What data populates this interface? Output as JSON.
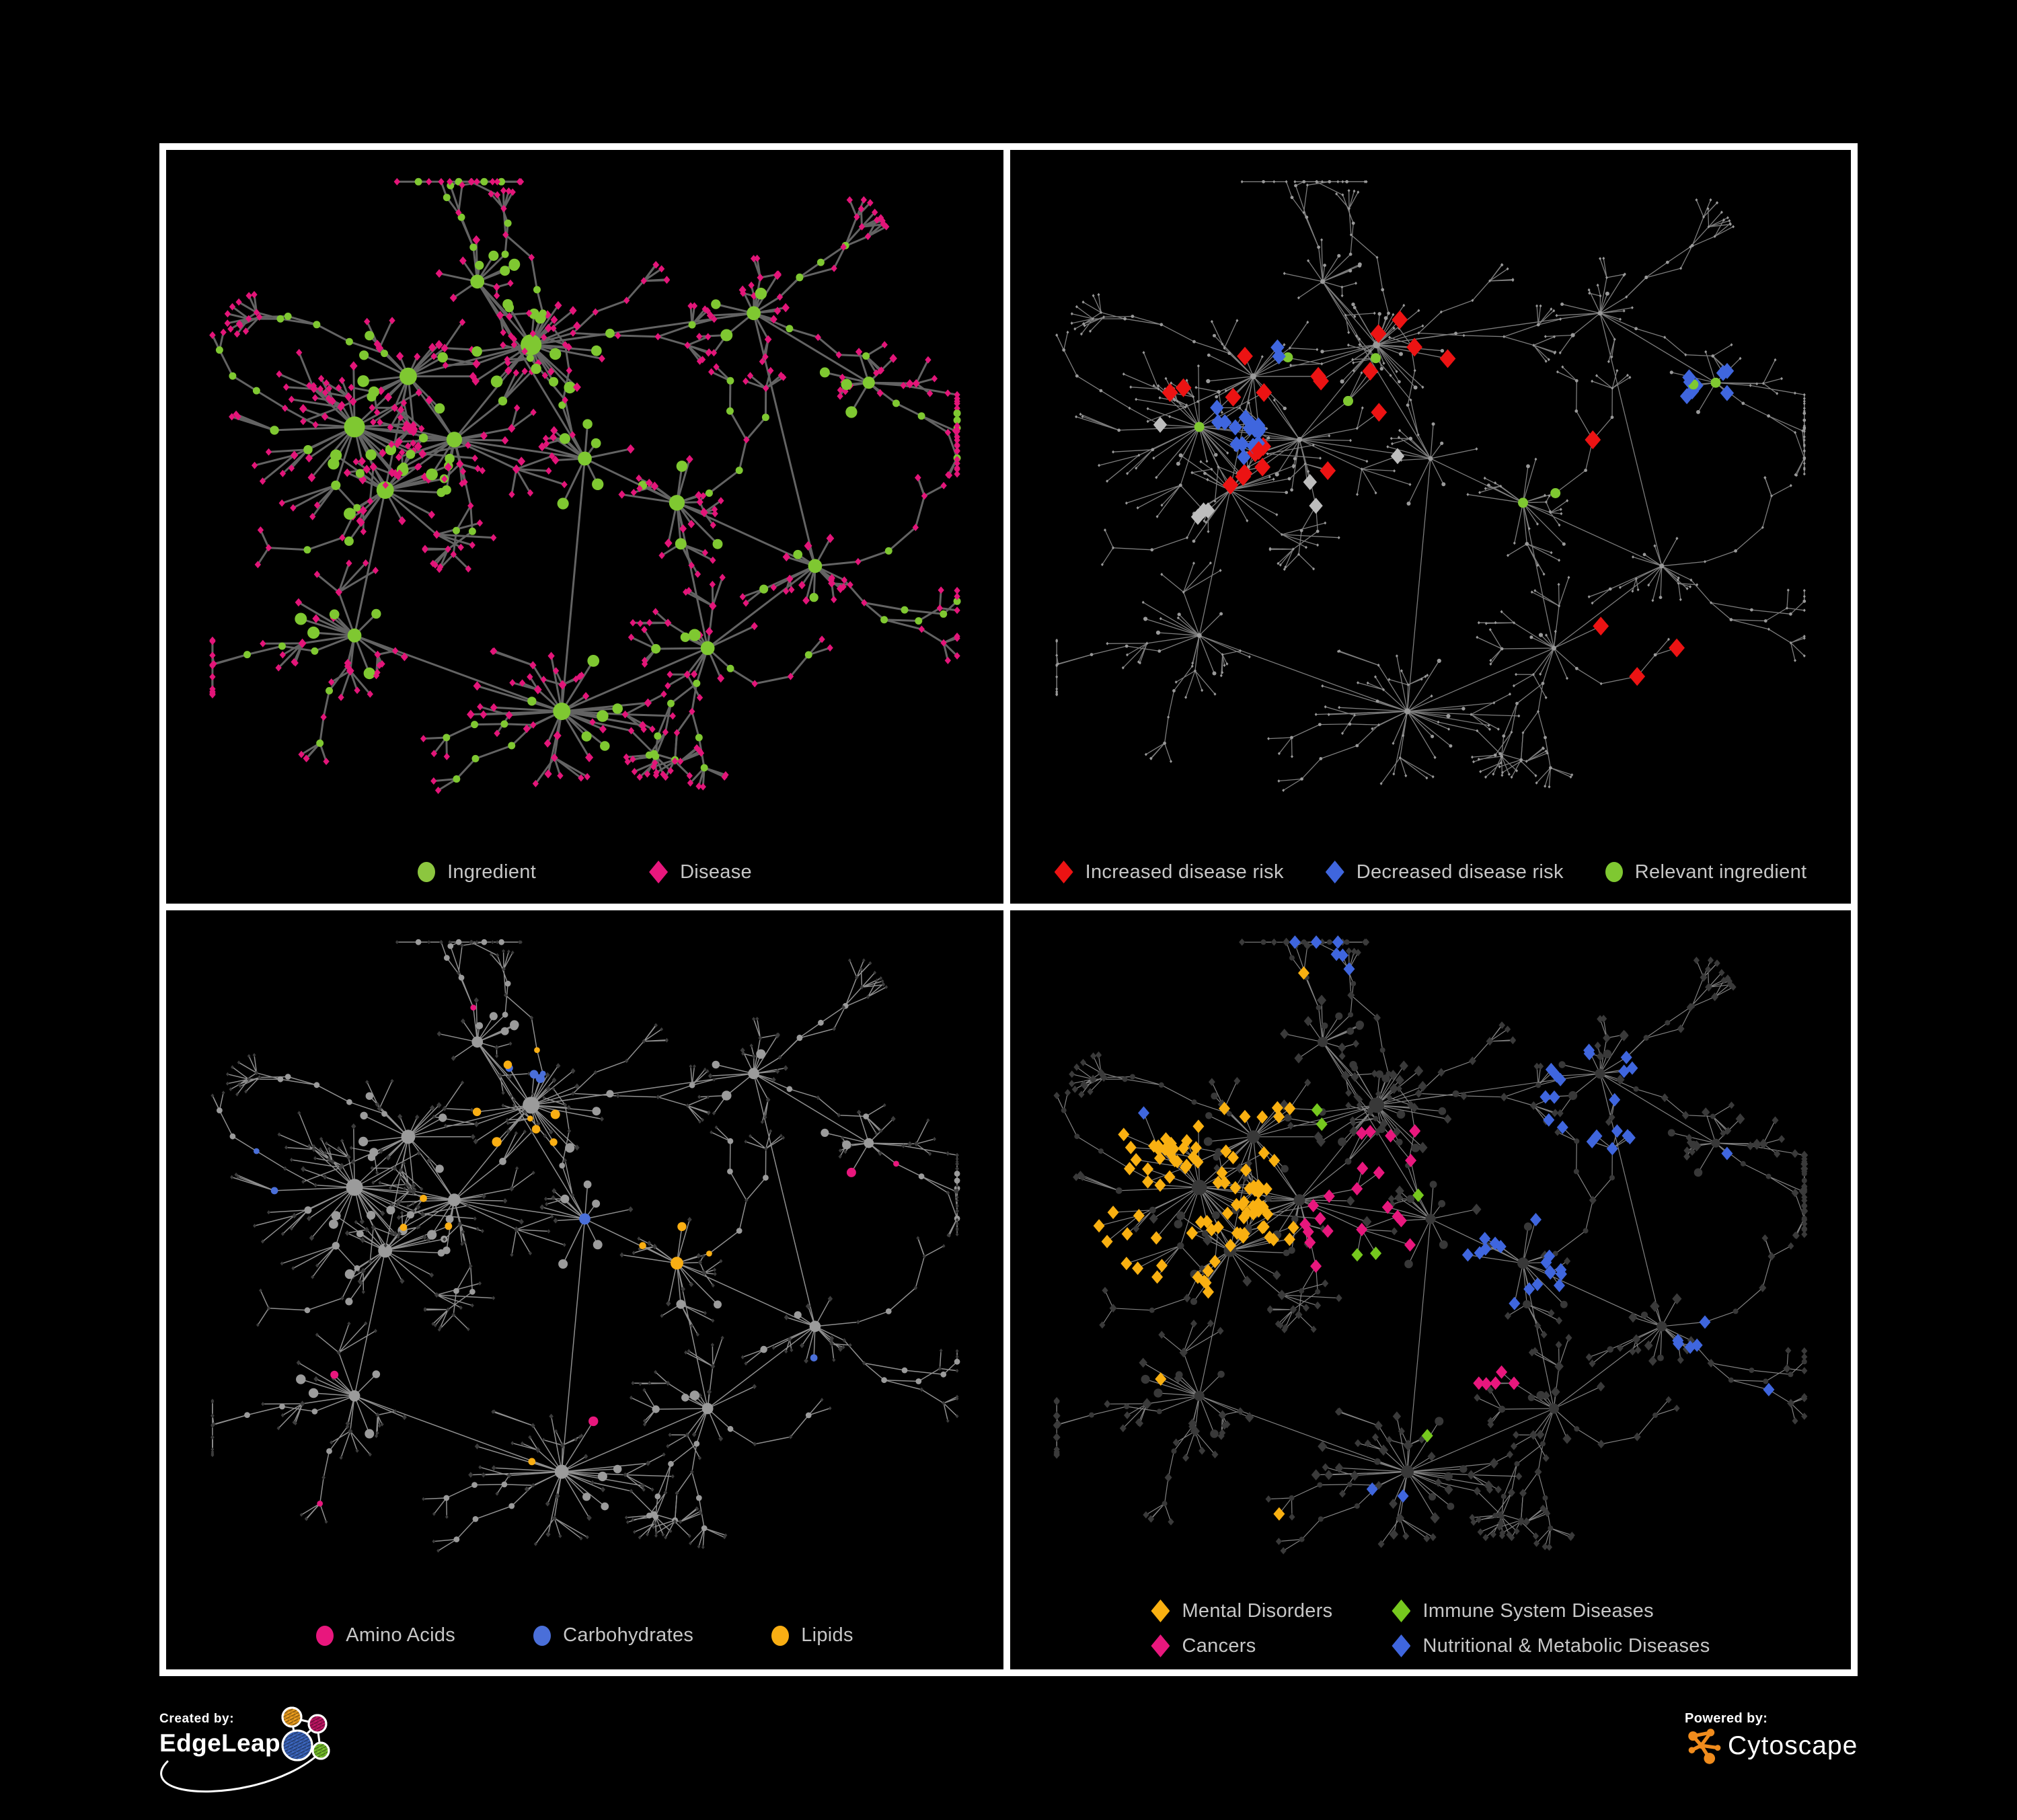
{
  "figure": {
    "background": "#000000",
    "panel_border": "#FFFFFF",
    "legend_text_color": "#C7C7C7"
  },
  "credits": {
    "created_by_label": "Created by:",
    "edgeleap_name": "EdgeLeap",
    "powered_by_label": "Powered by:",
    "cytoscape_name": "Cytoscape",
    "edgeleap_glyph_colors": {
      "blue": "#3C67C0",
      "orange": "#F0A01E",
      "magenta": "#C21565",
      "green": "#77C22B"
    },
    "cytoscape_icon_color": "#F08C1D"
  },
  "panels": [
    {
      "id": "ingredient-disease",
      "legend": {
        "layout": "row",
        "items": [
          {
            "label": "Ingredient",
            "shape": "circle",
            "color": "#8CC63F"
          },
          {
            "label": "Disease",
            "shape": "diamond",
            "color": "#E8177D"
          }
        ]
      },
      "scheme": {
        "mode": "category",
        "edge": "#6C6C6C",
        "edgeWidth": 3.0,
        "circleColor": "#7FC831",
        "diamondColor": "#E31579",
        "sizeMul": 1.3,
        "minSize": 5.5
      }
    },
    {
      "id": "disease-risk",
      "legend": {
        "layout": "row",
        "items": [
          {
            "label": "Increased disease risk",
            "shape": "diamond",
            "color": "#EC1313"
          },
          {
            "label": "Decreased disease risk",
            "shape": "diamond",
            "color": "#3F66DE"
          },
          {
            "label": "Relevant ingredient",
            "shape": "circle",
            "color": "#7FC831"
          }
        ]
      },
      "scheme": {
        "mode": "highlight",
        "edge": "#878787",
        "edgeWidth": 1.3,
        "baseColor": "#9A9A9A",
        "baseMul": 0.45,
        "rules": [
          {
            "shape": "diamond",
            "color": "#EC1313",
            "size": 14,
            "zones": [
              [
                0.3,
                0.38,
                0.15,
                0.18
              ],
              [
                0.45,
                0.28,
                0.08,
                0.22
              ],
              [
                0.76,
                0.73,
                0.07,
                0.5
              ],
              [
                0.66,
                0.42,
                0.06,
                0.25
              ],
              [
                0.52,
                0.55,
                0.05,
                0.22
              ]
            ]
          },
          {
            "shape": "diamond",
            "color": "#3F66DE",
            "size": 12,
            "zones": [
              [
                0.235,
                0.41,
                0.05,
                0.6
              ],
              [
                0.87,
                0.33,
                0.045,
                0.85
              ],
              [
                0.29,
                0.29,
                0.03,
                0.35
              ]
            ]
          },
          {
            "shape": "diamond",
            "color": "#BDBDBD",
            "size": 12,
            "zones": [
              [
                0.21,
                0.53,
                0.04,
                0.5
              ],
              [
                0.38,
                0.52,
                0.05,
                0.3
              ],
              [
                0.46,
                0.45,
                0.04,
                0.3
              ],
              [
                0.13,
                0.4,
                0.035,
                0.45
              ]
            ]
          },
          {
            "shape": "circle",
            "color": "#7FC831",
            "size": 7.5,
            "zones": [
              [
                0.3,
                0.38,
                0.15,
                0.13
              ],
              [
                0.62,
                0.52,
                0.06,
                0.6
              ],
              [
                0.44,
                0.27,
                0.07,
                0.25
              ],
              [
                0.12,
                0.42,
                0.05,
                0.35
              ],
              [
                0.87,
                0.33,
                0.035,
                0.9
              ],
              [
                0.25,
                0.17,
                0.05,
                0.3
              ]
            ]
          }
        ]
      }
    },
    {
      "id": "ingredient-classes",
      "legend": {
        "layout": "row",
        "items": [
          {
            "label": "Amino Acids",
            "shape": "circle",
            "color": "#E8177D"
          },
          {
            "label": "Carbohydrates",
            "shape": "circle",
            "color": "#4A6FD9"
          },
          {
            "label": "Lipids",
            "shape": "circle",
            "color": "#F9AE13"
          }
        ]
      },
      "scheme": {
        "mode": "classes",
        "edge": "#9C9C9C",
        "edgeWidth": 1.5,
        "circleColor": "#9B9B9B",
        "circleMul": 1.05,
        "diamondColor": "#3C3C3C",
        "diamondMul": 0.82,
        "rules": [
          {
            "shape": "circle",
            "color": "#F9AE13",
            "size": 0,
            "zones": [
              [
                0.43,
                0.26,
                0.1,
                0.8
              ],
              [
                0.36,
                0.42,
                0.08,
                0.4
              ],
              [
                0.62,
                0.52,
                0.07,
                0.6
              ],
              [
                0.3,
                0.33,
                0.07,
                0.3
              ],
              [
                0.72,
                0.6,
                0.08,
                0.2
              ],
              [
                0.47,
                0.84,
                0.05,
                0.35
              ],
              [
                0.25,
                0.52,
                0.06,
                0.2
              ]
            ]
          },
          {
            "shape": "circle",
            "color": "#4A6FD9",
            "size": 0,
            "zones": [
              [
                0.43,
                0.22,
                0.06,
                0.35
              ],
              [
                0.06,
                0.38,
                0.045,
                0.6
              ],
              [
                0.8,
                0.64,
                0.05,
                0.4
              ],
              [
                0.48,
                0.47,
                0.035,
                0.3
              ]
            ]
          },
          {
            "shape": "circle",
            "color": "#E8177D",
            "size": 0,
            "zones": [
              [
                0.06,
                0.52,
                0.05,
                0.6
              ],
              [
                0.14,
                0.67,
                0.05,
                0.5
              ],
              [
                0.33,
                0.09,
                0.05,
                0.45
              ],
              [
                0.55,
                0.76,
                0.06,
                0.4
              ],
              [
                0.66,
                0.66,
                0.05,
                0.5
              ],
              [
                0.68,
                0.33,
                0.05,
                0.35
              ],
              [
                0.88,
                0.4,
                0.05,
                0.5
              ],
              [
                0.42,
                0.62,
                0.04,
                0.3
              ],
              [
                0.12,
                0.86,
                0.06,
                0.35
              ],
              [
                0.58,
                0.1,
                0.05,
                0.3
              ]
            ]
          }
        ]
      }
    },
    {
      "id": "disease-classes",
      "legend": {
        "layout": "grid",
        "items": [
          {
            "label": "Mental Disorders",
            "shape": "diamond",
            "color": "#F9B011"
          },
          {
            "label": "Immune System Diseases",
            "shape": "diamond",
            "color": "#76C81E"
          },
          {
            "label": "Cancers",
            "shape": "diamond",
            "color": "#E8177D"
          },
          {
            "label": "Nutritional & Metabolic Diseases",
            "shape": "diamond",
            "color": "#3F66DE"
          }
        ]
      },
      "scheme": {
        "mode": "classes",
        "edge": "#8E8E8E",
        "edgeWidth": 1.2,
        "circleColor": "#383838",
        "circleMul": 0.95,
        "diamondColor": "#3A3A3A",
        "diamondMul": 1.55,
        "rules": [
          {
            "shape": "diamond",
            "color": "#F9B011",
            "size": 10,
            "zones": [
              [
                0.2,
                0.42,
                0.15,
                0.85
              ],
              [
                0.28,
                0.33,
                0.07,
                0.45
              ],
              [
                0.35,
                0.07,
                0.05,
                0.5
              ],
              [
                0.1,
                0.68,
                0.06,
                0.3
              ],
              [
                0.3,
                0.88,
                0.05,
                0.3
              ]
            ]
          },
          {
            "shape": "diamond",
            "color": "#E8177D",
            "size": 10,
            "zones": [
              [
                0.42,
                0.45,
                0.11,
                0.55
              ],
              [
                0.47,
                0.32,
                0.07,
                0.35
              ],
              [
                0.9,
                0.2,
                0.06,
                0.6
              ],
              [
                0.35,
                0.75,
                0.05,
                0.3
              ],
              [
                0.6,
                0.7,
                0.05,
                0.25
              ],
              [
                0.25,
                0.06,
                0.04,
                0.35
              ]
            ]
          },
          {
            "shape": "diamond",
            "color": "#3F66DE",
            "size": 10,
            "zones": [
              [
                0.62,
                0.5,
                0.09,
                0.7
              ],
              [
                0.73,
                0.25,
                0.09,
                0.6
              ],
              [
                0.82,
                0.58,
                0.08,
                0.55
              ],
              [
                0.87,
                0.4,
                0.06,
                0.6
              ],
              [
                0.55,
                0.05,
                0.06,
                0.5
              ],
              [
                0.3,
                0.72,
                0.05,
                0.3
              ],
              [
                0.47,
                0.88,
                0.06,
                0.35
              ],
              [
                0.12,
                0.28,
                0.05,
                0.3
              ],
              [
                0.9,
                0.7,
                0.05,
                0.5
              ],
              [
                0.35,
                0.05,
                0.05,
                0.4
              ]
            ]
          },
          {
            "shape": "diamond",
            "color": "#76C81E",
            "size": 10,
            "zones": [
              [
                0.5,
                0.38,
                0.04,
                0.5
              ],
              [
                0.42,
                0.5,
                0.03,
                0.5
              ],
              [
                0.58,
                0.58,
                0.03,
                0.5
              ],
              [
                0.36,
                0.3,
                0.025,
                0.5
              ],
              [
                0.52,
                0.78,
                0.03,
                0.4
              ]
            ]
          }
        ]
      }
    }
  ],
  "network": {
    "seed": 1337,
    "diamondProb": 0.62,
    "step": 0.05,
    "hubs": [
      [
        0.2,
        0.4,
        26,
        0.085,
        12
      ],
      [
        0.27,
        0.32,
        22,
        0.075,
        10
      ],
      [
        0.24,
        0.5,
        20,
        0.075,
        10
      ],
      [
        0.33,
        0.42,
        18,
        0.07,
        9
      ],
      [
        0.43,
        0.27,
        26,
        0.075,
        12
      ],
      [
        0.36,
        0.17,
        12,
        0.055,
        8
      ],
      [
        0.5,
        0.45,
        10,
        0.065,
        8
      ],
      [
        0.62,
        0.52,
        14,
        0.065,
        9
      ],
      [
        0.47,
        0.85,
        26,
        0.085,
        10
      ],
      [
        0.2,
        0.73,
        14,
        0.07,
        8
      ],
      [
        0.72,
        0.22,
        12,
        0.06,
        8
      ],
      [
        0.8,
        0.62,
        13,
        0.06,
        8
      ],
      [
        0.66,
        0.75,
        11,
        0.055,
        8
      ],
      [
        0.87,
        0.33,
        9,
        0.05,
        7
      ]
    ],
    "links": [
      [
        0,
        1
      ],
      [
        0,
        2
      ],
      [
        0,
        3
      ],
      [
        1,
        2
      ],
      [
        1,
        3
      ],
      [
        2,
        3
      ],
      [
        1,
        4
      ],
      [
        3,
        4
      ],
      [
        2,
        9
      ],
      [
        3,
        6
      ],
      [
        4,
        5
      ],
      [
        4,
        10
      ],
      [
        6,
        7
      ],
      [
        6,
        8
      ],
      [
        7,
        11
      ],
      [
        7,
        12
      ],
      [
        10,
        13
      ],
      [
        10,
        11
      ],
      [
        11,
        12
      ],
      [
        12,
        8
      ],
      [
        9,
        8
      ],
      [
        5,
        6
      ]
    ],
    "branches": [
      [
        5,
        -95,
        4
      ],
      [
        5,
        -45,
        3
      ],
      [
        4,
        -70,
        4
      ],
      [
        4,
        -20,
        3
      ],
      [
        10,
        -35,
        4
      ],
      [
        10,
        25,
        3
      ],
      [
        13,
        5,
        4
      ],
      [
        13,
        55,
        3
      ],
      [
        11,
        35,
        4
      ],
      [
        11,
        -10,
        3
      ],
      [
        12,
        105,
        3
      ],
      [
        9,
        155,
        4
      ],
      [
        9,
        100,
        3
      ],
      [
        0,
        185,
        4
      ],
      [
        2,
        150,
        3
      ],
      [
        8,
        155,
        3
      ],
      [
        8,
        25,
        3
      ],
      [
        7,
        -15,
        4
      ],
      [
        1,
        -140,
        4
      ],
      [
        3,
        75,
        3
      ],
      [
        6,
        -115,
        3
      ],
      [
        12,
        45,
        3
      ]
    ]
  }
}
